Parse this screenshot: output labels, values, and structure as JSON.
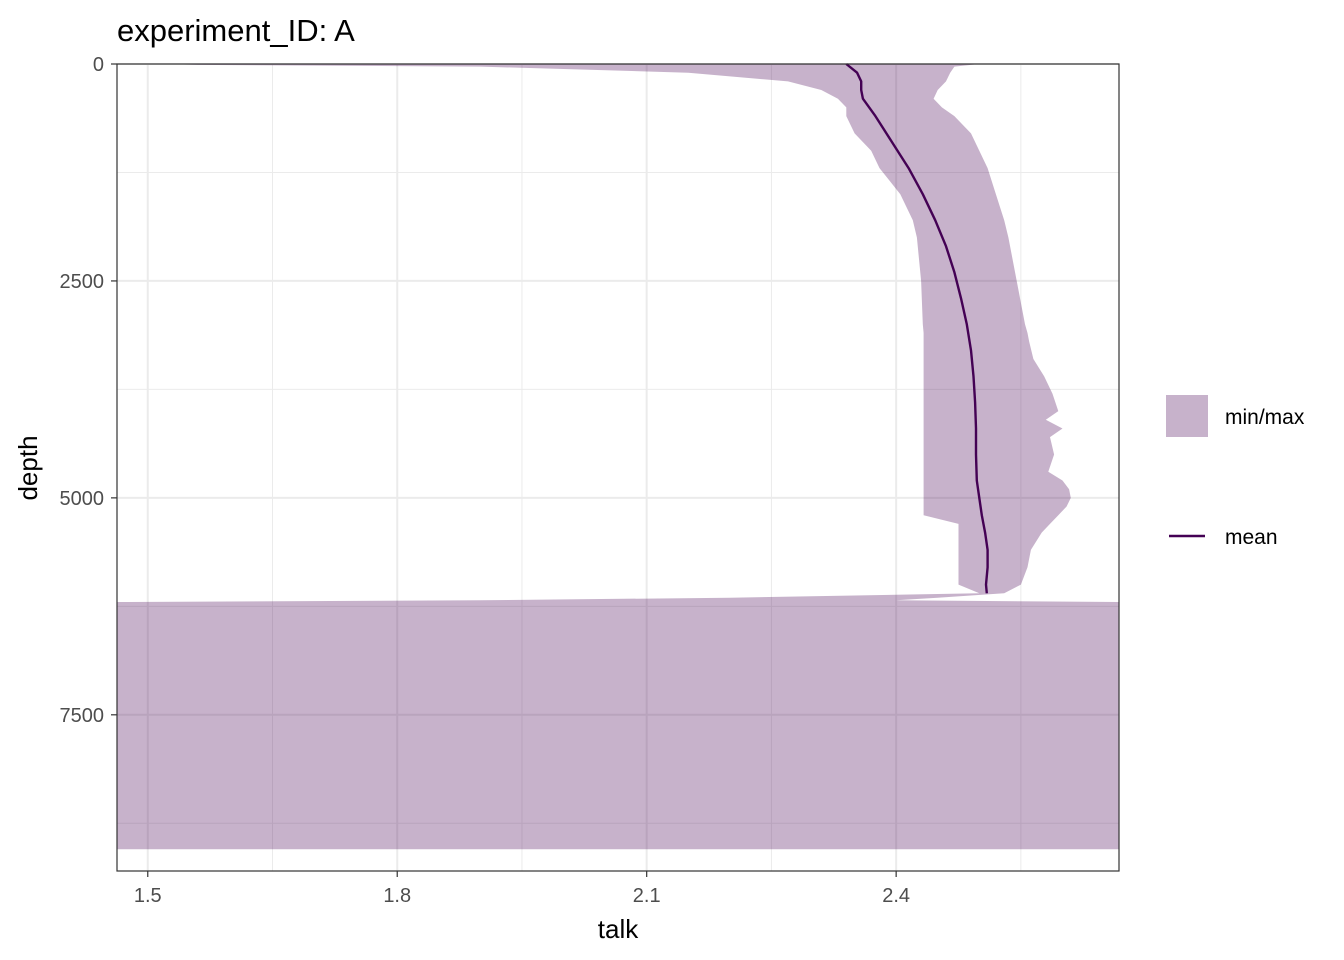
{
  "chart_data": {
    "type": "area",
    "title": "experiment_ID: A",
    "xlabel": "talk",
    "ylabel": "depth",
    "xlim": [
      1.463,
      2.668
    ],
    "ylim": [
      0,
      9300
    ],
    "y_reversed": true,
    "grid": true,
    "x_ticks": [
      {
        "value": 1.5,
        "label": "1.5"
      },
      {
        "value": 1.8,
        "label": "1.8"
      },
      {
        "value": 2.1,
        "label": "2.1"
      },
      {
        "value": 2.4,
        "label": "2.4"
      }
    ],
    "y_ticks": [
      {
        "value": 0,
        "label": "0"
      },
      {
        "value": 2500,
        "label": "2500"
      },
      {
        "value": 5000,
        "label": "5000"
      },
      {
        "value": 7500,
        "label": "7500"
      }
    ],
    "legend": {
      "position": "right",
      "items": [
        {
          "label": "min/max",
          "kind": "ribbon"
        },
        {
          "label": "mean",
          "kind": "line"
        }
      ]
    },
    "colors": {
      "ribbon": "#c6b3cc",
      "mean": "#440154",
      "grid": "#ebebeb",
      "border": "#333333"
    },
    "series": [
      {
        "name": "min/max",
        "kind": "ribbon",
        "depth": [
          0,
          10,
          30,
          100,
          200,
          300,
          400,
          500,
          600,
          800,
          1000,
          1200,
          1500,
          1800,
          2000,
          2500,
          3000,
          3100,
          3200,
          3400,
          3600,
          3800,
          4000,
          4100,
          4200,
          4300,
          4500,
          4700,
          4800,
          4900,
          5000,
          5100,
          5200,
          5300,
          5400,
          5600,
          5800,
          6000,
          6100,
          6150,
          6180,
          6200,
          6300,
          6500,
          7000,
          7500,
          8000,
          8500,
          8800,
          9000,
          9050
        ],
        "min": [
          1.52,
          1.56,
          1.9,
          2.15,
          2.27,
          2.31,
          2.33,
          2.34,
          2.34,
          2.35,
          2.37,
          2.38,
          2.405,
          2.42,
          2.425,
          2.43,
          2.432,
          2.433,
          2.433,
          2.433,
          2.433,
          2.433,
          2.433,
          2.433,
          2.433,
          2.433,
          2.433,
          2.433,
          2.433,
          2.433,
          2.433,
          2.433,
          2.433,
          2.475,
          2.475,
          2.475,
          2.475,
          2.475,
          2.5,
          2.2,
          1.9,
          1.463,
          1.463,
          1.463,
          1.463,
          1.463,
          1.463,
          1.463,
          1.463,
          1.463,
          1.463
        ],
        "max": [
          2.5,
          2.49,
          2.47,
          2.465,
          2.46,
          2.45,
          2.445,
          2.455,
          2.47,
          2.49,
          2.5,
          2.51,
          2.52,
          2.53,
          2.535,
          2.545,
          2.555,
          2.558,
          2.56,
          2.565,
          2.578,
          2.588,
          2.595,
          2.58,
          2.6,
          2.585,
          2.59,
          2.583,
          2.6,
          2.608,
          2.61,
          2.605,
          2.595,
          2.585,
          2.575,
          2.562,
          2.558,
          2.55,
          2.53,
          2.45,
          2.4,
          2.668,
          2.668,
          2.668,
          2.668,
          2.668,
          2.668,
          2.668,
          2.668,
          2.668,
          2.668
        ]
      },
      {
        "name": "mean",
        "kind": "line",
        "depth": [
          0,
          100,
          200,
          300,
          400,
          600,
          900,
          1200,
          1500,
          1800,
          2100,
          2400,
          2700,
          3000,
          3300,
          3600,
          3900,
          4200,
          4500,
          4800,
          5000,
          5200,
          5400,
          5600,
          5800,
          6000,
          6100
        ],
        "values": [
          2.34,
          2.353,
          2.358,
          2.358,
          2.36,
          2.375,
          2.395,
          2.415,
          2.432,
          2.447,
          2.46,
          2.47,
          2.478,
          2.485,
          2.49,
          2.493,
          2.495,
          2.496,
          2.496,
          2.497,
          2.5,
          2.503,
          2.507,
          2.51,
          2.51,
          2.508,
          2.509
        ]
      }
    ]
  }
}
